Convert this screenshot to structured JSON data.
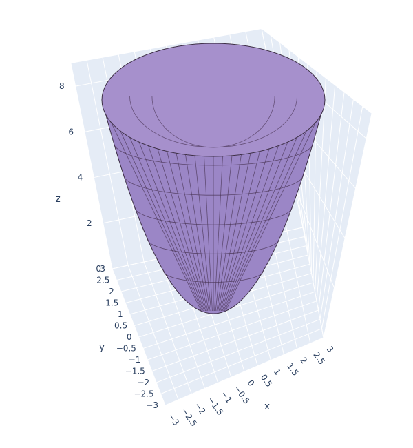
{
  "chart_data": {
    "type": "surface",
    "title": "",
    "surface_equation": "z = x^2 + y^2",
    "domain": "disk of radius 3",
    "color": "#9b7fbf",
    "grid_line_color": "#4a3555",
    "x": {
      "label": "x",
      "range": [
        -3,
        3
      ],
      "ticks": [
        "−3",
        "−2.5",
        "−2",
        "−1.5",
        "−1",
        "−0.5",
        "0",
        "0.5",
        "1",
        "1.5",
        "2",
        "2.5",
        "3"
      ]
    },
    "y": {
      "label": "y",
      "range": [
        -3,
        3
      ],
      "ticks": [
        "−3",
        "−2.5",
        "−2",
        "−1.5",
        "−1",
        "−0.5",
        "0",
        "0.5",
        "1",
        "1.5",
        "2",
        "2.5",
        "3"
      ]
    },
    "z": {
      "label": "z",
      "range": [
        0,
        9
      ],
      "ticks": [
        "0",
        "2",
        "4",
        "6",
        "8"
      ]
    },
    "background_color": "#e5ecf6",
    "grid": true
  }
}
